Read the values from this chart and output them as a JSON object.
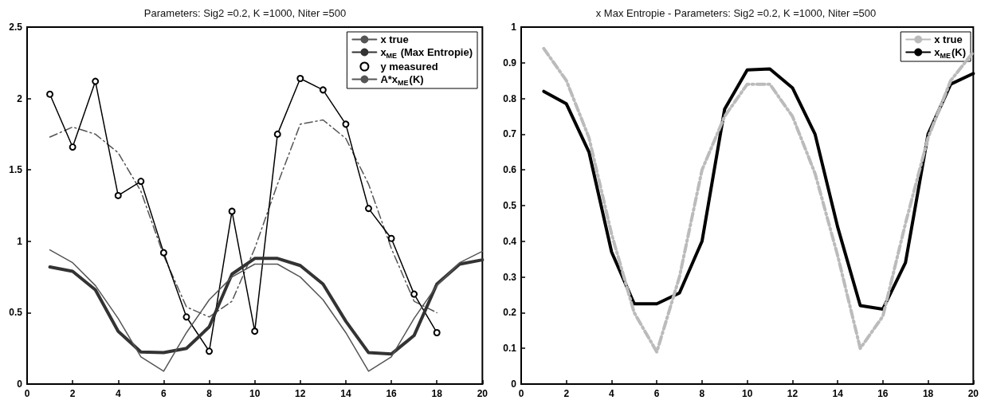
{
  "chart_data": [
    {
      "type": "line",
      "title": "Parameters: Sig2 =0.2, K =1000, Niter =500",
      "x": [
        1,
        2,
        3,
        4,
        5,
        6,
        7,
        8,
        9,
        10,
        11,
        12,
        13,
        14,
        15,
        16,
        17,
        18,
        19,
        20
      ],
      "series": [
        {
          "name": "x true",
          "color": "#555555",
          "line_style": "solid",
          "marker": "none",
          "values": [
            0.94,
            0.85,
            0.69,
            0.46,
            0.19,
            0.09,
            0.36,
            0.59,
            0.75,
            0.84,
            0.84,
            0.75,
            0.59,
            0.36,
            0.09,
            0.19,
            0.46,
            0.69,
            0.85,
            0.93
          ]
        },
        {
          "name": "x$_{ME}$ (Max Entropie)",
          "color": "#333333",
          "line_style": "solid",
          "marker": "none",
          "values": [
            0.82,
            0.79,
            0.66,
            0.37,
            0.225,
            0.22,
            0.25,
            0.4,
            0.77,
            0.88,
            0.88,
            0.83,
            0.7,
            0.44,
            0.22,
            0.21,
            0.34,
            0.7,
            0.84,
            0.87
          ]
        },
        {
          "name": "y measured",
          "color": "#000000",
          "line_style": "solid",
          "marker": "circle",
          "x": [
            1,
            2,
            3,
            4,
            5,
            6,
            7,
            8,
            9,
            10,
            11,
            12,
            13,
            14,
            15,
            16,
            17,
            18
          ],
          "values": [
            2.03,
            1.66,
            2.12,
            1.32,
            1.42,
            0.92,
            0.47,
            0.23,
            1.21,
            0.37,
            1.75,
            2.14,
            2.06,
            1.82,
            1.23,
            1.02,
            0.63,
            0.36
          ]
        },
        {
          "name": "A*x$_{ME}$(K)",
          "color": "#555555",
          "line_style": "dashed",
          "marker": "none",
          "x": [
            1,
            2,
            3,
            4,
            5,
            6,
            7,
            8,
            9,
            10,
            11,
            12,
            13,
            14,
            15,
            16,
            17,
            18
          ],
          "values": [
            1.73,
            1.8,
            1.75,
            1.62,
            1.35,
            0.9,
            0.54,
            0.47,
            0.58,
            0.95,
            1.4,
            1.82,
            1.85,
            1.72,
            1.4,
            0.95,
            0.58,
            0.5
          ]
        }
      ],
      "xlim": [
        0,
        20
      ],
      "xticks": [
        0,
        2,
        4,
        6,
        8,
        10,
        12,
        14,
        16,
        18,
        20
      ],
      "ylim": [
        0,
        2.5
      ],
      "yticks": [
        0,
        0.5,
        1,
        1.5,
        2,
        2.5
      ],
      "grid": false,
      "legend": "top right"
    },
    {
      "type": "line",
      "title": "x Max Entropie - Parameters: Sig2 =0.2, K =1000, Niter =500",
      "x": [
        1,
        2,
        3,
        4,
        5,
        6,
        7,
        8,
        9,
        10,
        11,
        12,
        13,
        14,
        15,
        16,
        17,
        18,
        19,
        20
      ],
      "series": [
        {
          "name": "x true",
          "color": "#bbbbbb",
          "line_style": "dashed",
          "marker": "none",
          "values": [
            0.94,
            0.85,
            0.69,
            0.42,
            0.2,
            0.09,
            0.3,
            0.6,
            0.75,
            0.84,
            0.84,
            0.75,
            0.59,
            0.36,
            0.1,
            0.19,
            0.45,
            0.69,
            0.85,
            0.93
          ]
        },
        {
          "name": "x$_{ME}$(K)",
          "color": "#000000",
          "line_style": "solid",
          "marker": "none",
          "values": [
            0.82,
            0.785,
            0.65,
            0.37,
            0.225,
            0.225,
            0.255,
            0.4,
            0.77,
            0.88,
            0.883,
            0.83,
            0.7,
            0.44,
            0.22,
            0.21,
            0.34,
            0.7,
            0.84,
            0.87
          ]
        }
      ],
      "xlim": [
        0,
        20
      ],
      "xticks": [
        0,
        2,
        4,
        6,
        8,
        10,
        12,
        14,
        16,
        18,
        20
      ],
      "ylim": [
        0,
        1
      ],
      "yticks": [
        0,
        0.1,
        0.2,
        0.3,
        0.4,
        0.5,
        0.6,
        0.7,
        0.8,
        0.9,
        1
      ],
      "grid": false,
      "legend": "top right"
    }
  ]
}
